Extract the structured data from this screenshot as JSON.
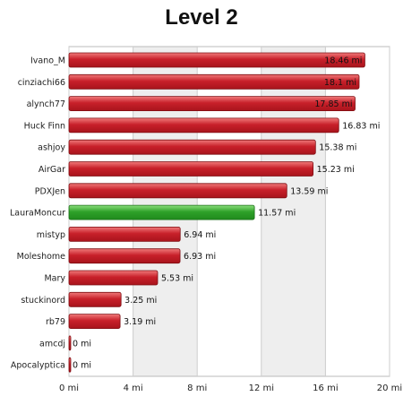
{
  "chart_data": {
    "type": "bar",
    "orientation": "horizontal",
    "title": "Level 2",
    "xlabel": "",
    "ylabel": "",
    "xlim": [
      0,
      20
    ],
    "x_ticks": [
      0,
      4,
      8,
      12,
      16,
      20
    ],
    "x_tick_labels": [
      "0 mi",
      "4 mi",
      "8 mi",
      "12 mi",
      "16 mi",
      "20 mi"
    ],
    "unit": "mi",
    "grid": "vertical, alternating shaded bands",
    "categories": [
      "Ivano_M",
      "cinziachi66",
      "alynch77",
      "Huck Finn",
      "ashjoy",
      "AirGar",
      "PDXJen",
      "LauraMoncur",
      "mistyp",
      "Moleshome",
      "Mary",
      "stuckinord",
      "rb79",
      "amcdj",
      "Apocalyptica"
    ],
    "values": [
      18.46,
      18.1,
      17.85,
      16.83,
      15.38,
      15.23,
      13.59,
      11.57,
      6.94,
      6.93,
      5.53,
      3.25,
      3.19,
      0,
      0
    ],
    "value_labels": [
      "18.46 mi",
      "18.1 mi",
      "17.85 mi",
      "16.83 mi",
      "15.38 mi",
      "15.23 mi",
      "13.59 mi",
      "11.57 mi",
      "6.94 mi",
      "6.93 mi",
      "5.53 mi",
      "3.25 mi",
      "3.19 mi",
      "0 mi",
      "0 mi"
    ],
    "highlight_index": 7,
    "colors": {
      "bar": "#c8202a",
      "bar_light": "#f07a7a",
      "highlight": "#2fa12a",
      "highlight_light": "#8ee07e",
      "band": "#eeeeee",
      "grid": "#cccccc",
      "border": "#bbbbbb"
    }
  }
}
